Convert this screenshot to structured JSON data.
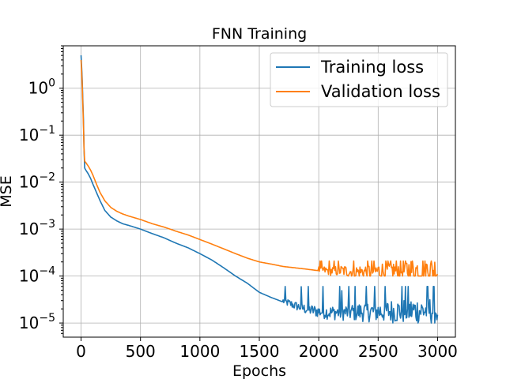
{
  "chart_data": {
    "type": "line",
    "title": "FNN Training",
    "xlabel": "Epochs",
    "ylabel": "MSE",
    "xlim": [
      -150,
      3150
    ],
    "ylim": [
      5e-06,
      8.0
    ],
    "yscale": "log",
    "grid": true,
    "legend_position": "top-right",
    "xticks": [
      0,
      500,
      1000,
      1500,
      2000,
      2500,
      3000
    ],
    "xtick_labels": [
      "0",
      "500",
      "1000",
      "1500",
      "2000",
      "2500",
      "3000"
    ],
    "yticks": [
      1,
      0.1,
      0.01,
      0.001,
      0.0001,
      1e-05
    ],
    "ytick_bases": [
      "10",
      "10",
      "10",
      "10",
      "10",
      "10"
    ],
    "ytick_exponents": [
      "0",
      "−1",
      "−2",
      "−3",
      "−4",
      "−5"
    ],
    "series": [
      {
        "name": "Training loss",
        "color": "#1f77b4",
        "x": [
          0,
          10,
          20,
          25,
          30,
          40,
          60,
          80,
          100,
          130,
          160,
          200,
          250,
          300,
          350,
          400,
          500,
          600,
          700,
          800,
          900,
          1000,
          1100,
          1200,
          1300,
          1400,
          1500,
          1600,
          1700,
          1800,
          1900,
          2000,
          2100,
          2200,
          2300,
          2400,
          2500,
          2600,
          2700,
          2800,
          2900,
          3000
        ],
        "values": [
          5.0,
          1.5,
          0.2,
          0.05,
          0.02,
          0.018,
          0.015,
          0.012,
          0.009,
          0.006,
          0.004,
          0.0025,
          0.0018,
          0.0015,
          0.0013,
          0.0012,
          0.001,
          0.0008,
          0.00065,
          0.0005,
          0.0004,
          0.0003,
          0.00022,
          0.00015,
          0.0001,
          7e-05,
          4.5e-05,
          3.5e-05,
          2.8e-05,
          2.2e-05,
          1.8e-05,
          1.6e-05,
          1.5e-05,
          1.5e-05,
          1.5e-05,
          1.5e-05,
          1.5e-05,
          1.5e-05,
          1.5e-05,
          1.5e-05,
          1.5e-05,
          1.5e-05
        ],
        "noise_from_epoch": 1700,
        "noise_range": [
          1e-05,
          6e-05
        ]
      },
      {
        "name": "Validation loss",
        "color": "#ff7f0e",
        "x": [
          0,
          10,
          20,
          25,
          30,
          40,
          60,
          80,
          100,
          130,
          160,
          200,
          250,
          300,
          350,
          400,
          500,
          600,
          700,
          800,
          900,
          1000,
          1100,
          1200,
          1300,
          1400,
          1500,
          1600,
          1700,
          1800,
          1900,
          2000,
          2100,
          2200,
          2300,
          2400,
          2500,
          2600,
          2700,
          2800,
          2900,
          3000
        ],
        "values": [
          4.0,
          1.2,
          0.15,
          0.05,
          0.028,
          0.026,
          0.022,
          0.018,
          0.014,
          0.009,
          0.006,
          0.004,
          0.0029,
          0.0024,
          0.0021,
          0.0019,
          0.0016,
          0.0013,
          0.0011,
          0.0009,
          0.00075,
          0.0006,
          0.00048,
          0.00038,
          0.0003,
          0.00024,
          0.0002,
          0.00018,
          0.00016,
          0.00015,
          0.00014,
          0.00013,
          0.00012,
          0.00012,
          0.00011,
          0.00011,
          0.00011,
          0.00011,
          0.00011,
          0.00011,
          0.00011,
          0.00011
        ],
        "noise_from_epoch": 2000,
        "noise_range": [
          0.0001,
          0.00021
        ]
      }
    ]
  }
}
